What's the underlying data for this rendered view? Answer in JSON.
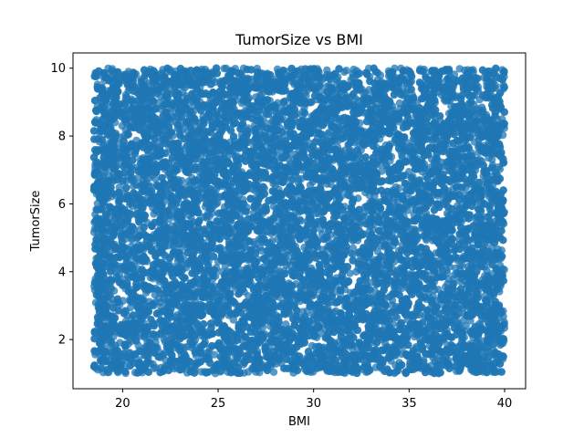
{
  "chart_data": {
    "type": "scatter",
    "title": "TumorSize vs BMI",
    "xlabel": "BMI",
    "ylabel": "TumorSize",
    "xlim": [
      17.4,
      41.1
    ],
    "ylim": [
      0.55,
      10.45
    ],
    "xticks": [
      20,
      25,
      30,
      35,
      40
    ],
    "yticks": [
      2,
      4,
      6,
      8,
      10
    ],
    "point_region": {
      "x": [
        18.5,
        40.0
      ],
      "y": [
        1.0,
        10.0
      ]
    },
    "point_count": 12000,
    "grid": false,
    "legend": "none",
    "series": [
      {
        "color": "#1f77b4",
        "marker": "circle",
        "alpha": 0.75
      }
    ]
  }
}
